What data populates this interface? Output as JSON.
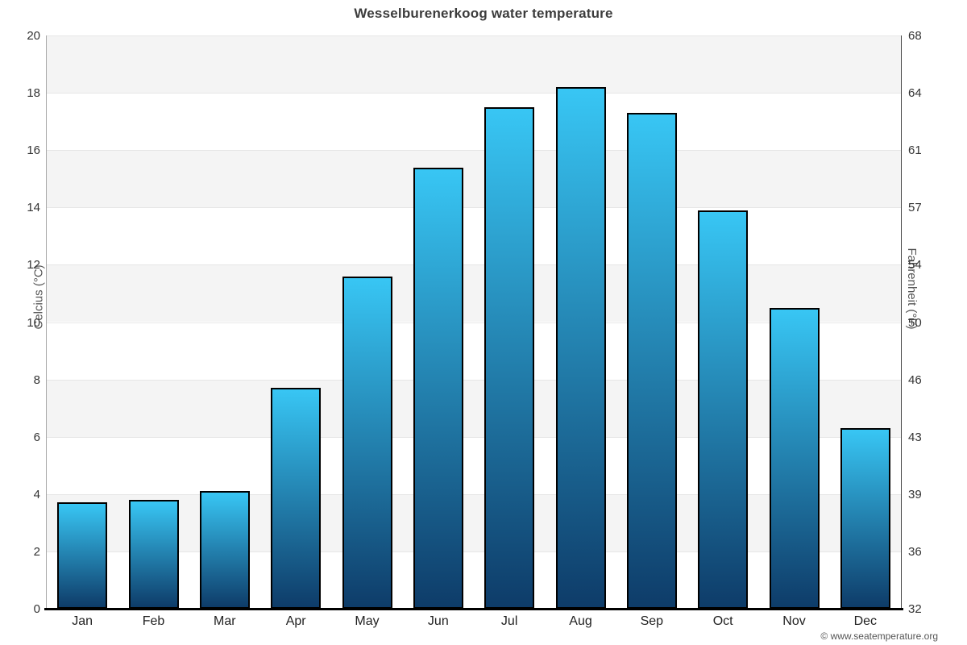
{
  "title": "Wesselburenerkoog water temperature",
  "credit": "© www.seatemperature.org",
  "axes": {
    "left_title": "Celcius (°C)",
    "right_title": "Fahrenheit (°F)"
  },
  "chart_data": {
    "type": "bar",
    "title": "Wesselburenerkoog water temperature",
    "xlabel": "",
    "ylabel": "Celcius (°C)",
    "ylabel_secondary": "Fahrenheit (°F)",
    "categories": [
      "Jan",
      "Feb",
      "Mar",
      "Apr",
      "May",
      "Jun",
      "Jul",
      "Aug",
      "Sep",
      "Oct",
      "Nov",
      "Dec"
    ],
    "values": [
      3.7,
      3.8,
      4.1,
      7.7,
      11.6,
      15.4,
      17.5,
      18.2,
      17.3,
      13.9,
      10.5,
      6.3
    ],
    "ylim": [
      0,
      20
    ],
    "yticks_celsius": [
      0,
      2,
      4,
      6,
      8,
      10,
      12,
      14,
      16,
      18,
      20
    ],
    "yticks_fahrenheit": [
      "32",
      "36",
      "39",
      "43",
      "46",
      "50",
      "54",
      "57",
      "61",
      "64",
      "68"
    ],
    "grid": true,
    "legend_position": "none",
    "colors": {
      "bar_gradient_top": "#38c6f4",
      "bar_gradient_bottom": "#0e3c69",
      "bar_border": "#000000",
      "band_fill": "#f4f4f4",
      "grid_line": "#e6e6e6",
      "title_text": "#3c3c3c",
      "tick_text": "#333333"
    }
  }
}
